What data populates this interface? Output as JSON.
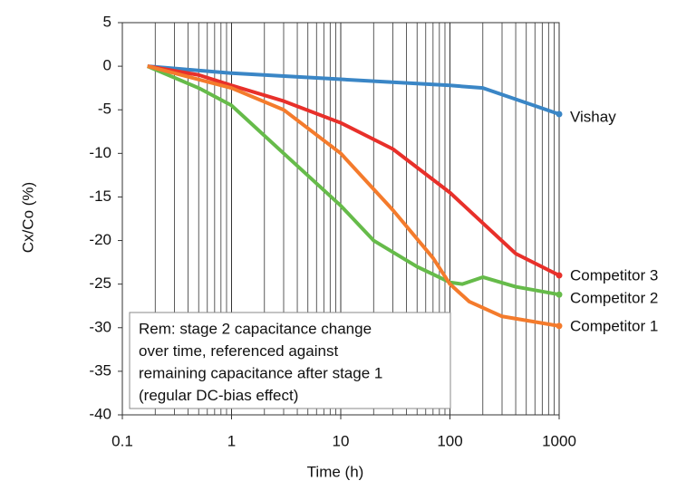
{
  "chart_data": {
    "type": "line",
    "xlabel": "Time (h)",
    "ylabel": "Cx/Co (%)",
    "xscale": "log",
    "xlim": [
      0.1,
      1000
    ],
    "xticks": [
      0.1,
      1,
      10,
      100,
      1000
    ],
    "x_minor_ticks": [
      0.2,
      0.3,
      0.4,
      0.5,
      0.6,
      0.7,
      0.8,
      0.9,
      2,
      3,
      4,
      5,
      6,
      7,
      8,
      9,
      20,
      30,
      40,
      50,
      60,
      70,
      80,
      90,
      200,
      300,
      400,
      500,
      600,
      700,
      800,
      900
    ],
    "ylim": [
      -40,
      5
    ],
    "yticks": [
      5,
      0,
      -5,
      -10,
      -15,
      -20,
      -25,
      -30,
      -35,
      -40
    ],
    "grid": true,
    "annotation": [
      "Rem: stage 2 capacitance change",
      "over time, referenced against",
      "remaining capacitance after stage 1",
      "(regular DC-bias effect)"
    ],
    "series": [
      {
        "name": "Vishay",
        "color": "#3a86c6",
        "x": [
          0.17,
          1,
          10,
          100,
          200,
          1000
        ],
        "values": [
          0,
          -0.8,
          -1.5,
          -2.2,
          -2.5,
          -5.5
        ]
      },
      {
        "name": "Competitor 3",
        "color": "#e8302a",
        "x": [
          0.17,
          0.5,
          1,
          3,
          10,
          30,
          100,
          200,
          400,
          1000
        ],
        "values": [
          0,
          -1,
          -2.2,
          -4,
          -6.5,
          -9.5,
          -14.5,
          -18,
          -21.5,
          -24
        ]
      },
      {
        "name": "Competitor 2",
        "color": "#66bb4a",
        "x": [
          0.17,
          0.5,
          1,
          3,
          10,
          20,
          50,
          100,
          130,
          200,
          400,
          1000
        ],
        "values": [
          0,
          -2.5,
          -4.5,
          -10,
          -16,
          -20,
          -23,
          -24.8,
          -25,
          -24.2,
          -25.3,
          -26.2
        ]
      },
      {
        "name": "Competitor 1",
        "color": "#f47b2c",
        "x": [
          0.17,
          1,
          3,
          10,
          30,
          70,
          100,
          150,
          300,
          1000
        ],
        "values": [
          0,
          -2.5,
          -5,
          -10,
          -16.5,
          -22,
          -25,
          -27,
          -28.7,
          -29.8
        ]
      }
    ]
  }
}
